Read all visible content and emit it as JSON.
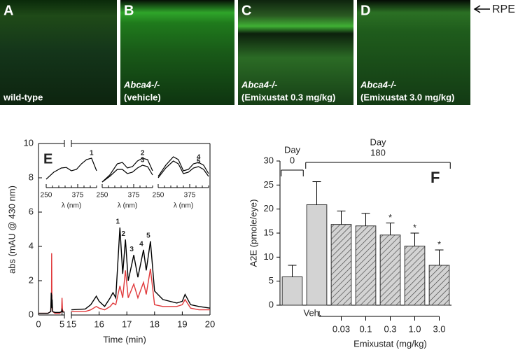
{
  "figure": {
    "image_panels": [
      {
        "label": "A",
        "caption": [
          "wild-type"
        ]
      },
      {
        "label": "B",
        "caption": [
          "Abca4-/-",
          "(vehicle)"
        ]
      },
      {
        "label": "C",
        "caption": [
          "Abca4-/-",
          "(Emixustat 0.3 mg/kg)"
        ]
      },
      {
        "label": "D",
        "caption": [
          "Abca4-/-",
          "(Emixustat 3.0 mg/kg)"
        ]
      }
    ],
    "layer_label": "RPE"
  },
  "chart_data": [
    {
      "type": "line",
      "panel_label": "E",
      "xlabel": "Time (min)",
      "ylabel": "abs (mAU @ 430 nm)",
      "ylim": [
        0,
        10
      ],
      "yticks": [
        0,
        2,
        4,
        6,
        8,
        10
      ],
      "xlim": [
        0,
        20
      ],
      "xbreak": [
        5.5,
        15
      ],
      "xticks": [
        0,
        5,
        15,
        16,
        17,
        18,
        19,
        20
      ],
      "x": [
        0,
        1,
        2,
        2.6,
        2.7,
        2.75,
        2.8,
        2.85,
        2.9,
        3.0,
        3.5,
        4.5,
        4.9,
        5.0,
        5.1,
        5.3,
        10,
        15.0,
        15.5,
        15.7,
        15.9,
        16.0,
        16.2,
        16.4,
        16.5,
        16.6,
        16.75,
        16.85,
        16.95,
        17.05,
        17.25,
        17.4,
        17.6,
        17.7,
        17.85,
        18.0,
        18.3,
        18.8,
        19.0,
        19.1,
        19.3,
        19.6,
        20
      ],
      "series": [
        {
          "color": "#000000",
          "values": [
            0.1,
            0.1,
            0.1,
            0.2,
            1.3,
            0.5,
            1.2,
            0.4,
            0.9,
            0.2,
            0.15,
            0.15,
            0.2,
            0.3,
            0.2,
            0.15,
            null,
            0.3,
            0.35,
            0.6,
            1.1,
            0.8,
            0.5,
            1.0,
            1.3,
            1.0,
            5.1,
            2.4,
            4.4,
            2.0,
            3.5,
            2.2,
            3.8,
            2.6,
            4.3,
            1.4,
            0.9,
            0.7,
            0.8,
            1.2,
            0.6,
            0.5,
            0.4
          ]
        },
        {
          "color": "#e0393b",
          "values": [
            0.1,
            0.1,
            0.1,
            0.2,
            0.8,
            0.4,
            3.6,
            0.6,
            0.5,
            0.2,
            0.1,
            0.1,
            0.2,
            1.0,
            0.3,
            0.15,
            null,
            0.2,
            0.2,
            0.3,
            0.5,
            0.4,
            0.3,
            0.5,
            0.7,
            0.6,
            1.7,
            1.0,
            2.6,
            1.0,
            1.8,
            1.0,
            1.9,
            1.2,
            2.7,
            0.6,
            0.5,
            0.5,
            0.6,
            0.9,
            0.4,
            0.3,
            0.3
          ]
        }
      ],
      "annotations": [
        {
          "text": "1",
          "x": 16.75
        },
        {
          "text": "2",
          "x": 16.95
        },
        {
          "text": "3",
          "x": 17.25
        },
        {
          "text": "4",
          "x": 17.6
        },
        {
          "text": "5",
          "x": 17.85
        }
      ],
      "insets": [
        {
          "xlim": [
            250,
            450
          ],
          "xticks": [
            250,
            375
          ],
          "xlabel": "λ (nm)",
          "ylim": [
            0,
            1
          ],
          "x": [
            250,
            280,
            310,
            330,
            350,
            370,
            390,
            410,
            430,
            450
          ],
          "series": [
            {
              "name": "1",
              "values": [
                0.2,
                0.45,
                0.6,
                0.62,
                0.5,
                0.55,
                0.75,
                0.9,
                0.95,
                0.5
              ]
            }
          ]
        },
        {
          "xlim": [
            250,
            450
          ],
          "xticks": [
            250,
            375
          ],
          "xlabel": "λ (nm)",
          "ylim": [
            0,
            1
          ],
          "x": [
            250,
            280,
            310,
            330,
            350,
            370,
            390,
            410,
            430,
            450
          ],
          "series": [
            {
              "name": "2",
              "values": [
                0.1,
                0.35,
                0.75,
                0.8,
                0.6,
                0.65,
                0.85,
                0.95,
                0.9,
                0.5
              ]
            },
            {
              "name": "3",
              "values": [
                0.1,
                0.3,
                0.55,
                0.55,
                0.4,
                0.45,
                0.6,
                0.7,
                0.65,
                0.35
              ]
            }
          ]
        },
        {
          "xlim": [
            250,
            450
          ],
          "xticks": [
            250,
            375
          ],
          "xlabel": "λ (nm)",
          "ylim": [
            0,
            1
          ],
          "x": [
            250,
            280,
            310,
            330,
            350,
            370,
            390,
            410,
            430,
            450
          ],
          "series": [
            {
              "name": "4",
              "values": [
                0.3,
                0.7,
                1.0,
                0.9,
                0.5,
                0.55,
                0.75,
                0.8,
                0.7,
                0.4
              ]
            },
            {
              "name": "5",
              "values": [
                0.25,
                0.6,
                0.85,
                0.75,
                0.4,
                0.45,
                0.6,
                0.65,
                0.55,
                0.3
              ]
            }
          ]
        }
      ]
    },
    {
      "type": "bar",
      "panel_label": "F",
      "ylabel": "A2E (pmole/eye)",
      "xlabel": "Emixustat (mg/kg)",
      "ylim": [
        0,
        30
      ],
      "yticks": [
        0,
        5,
        10,
        15,
        20,
        25,
        30
      ],
      "categories": [
        null,
        "Veh.",
        "0.03",
        "0.1",
        "0.3",
        "1.0",
        "3.0"
      ],
      "values": [
        5.9,
        20.9,
        16.8,
        16.5,
        14.6,
        12.3,
        8.3
      ],
      "errors": [
        2.4,
        4.8,
        2.8,
        2.6,
        2.5,
        2.7,
        3.2
      ],
      "color": "#d3d3d3",
      "fill_styles": [
        "solid",
        "solid",
        "hatched",
        "hatched",
        "hatched",
        "hatched",
        "hatched"
      ],
      "significance": [
        null,
        null,
        null,
        null,
        "*",
        "*",
        "*"
      ],
      "xlabel_group": {
        "from": 2,
        "to": 6
      },
      "groups": [
        {
          "label": [
            "Day",
            "0"
          ],
          "from": 0,
          "to": 0
        },
        {
          "label": [
            "Day",
            "180"
          ],
          "from": 1,
          "to": 6
        }
      ]
    }
  ]
}
